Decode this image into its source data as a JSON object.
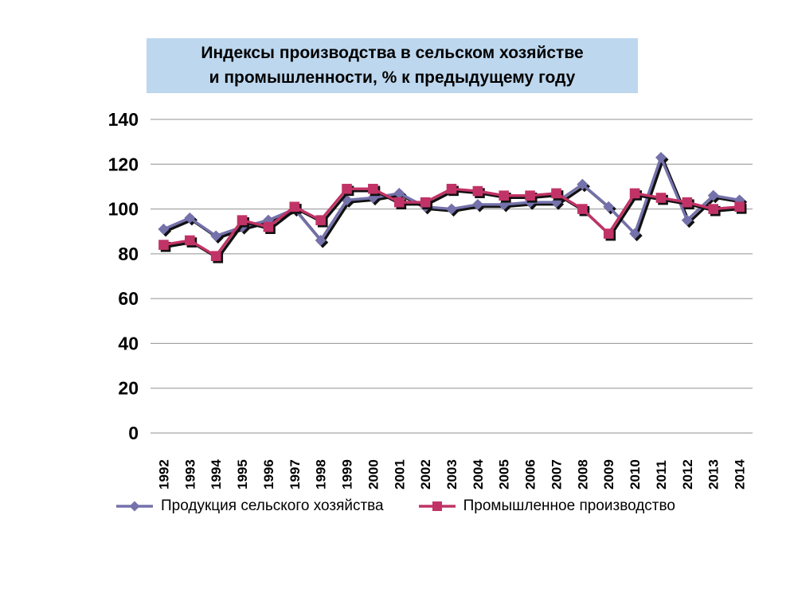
{
  "title": {
    "text": "Индексы производства в сельском хозяйстве\nи промышленности, % к предыдущему году",
    "bg_color": "#BDD7EE"
  },
  "colors": {
    "agriculture": "#7471AB",
    "industry": "#C13366",
    "shadow": "#111111",
    "gridline": "#909090",
    "title_bg": "#BDD7EE"
  },
  "chart_data": {
    "type": "line",
    "title": "Индексы производства в сельском хозяйстве и промышленности, % к предыдущему году",
    "xlabel": "",
    "ylabel": "",
    "ylim": [
      0,
      140
    ],
    "yticks": [
      0,
      20,
      40,
      60,
      80,
      100,
      120,
      140
    ],
    "grid": "horizontal",
    "legend_position": "bottom",
    "categories": [
      "1992",
      "1993",
      "1994",
      "1995",
      "1996",
      "1997",
      "1998",
      "1999",
      "2000",
      "2001",
      "2002",
      "2003",
      "2004",
      "2005",
      "2006",
      "2007",
      "2008",
      "2009",
      "2010",
      "2011",
      "2012",
      "2013",
      "2014"
    ],
    "series": [
      {
        "key": "agriculture",
        "name": "Продукция сельского хозяйства",
        "marker": "diamond",
        "color": "#7471AB",
        "values": [
          91,
          96,
          88,
          92,
          95,
          100,
          86,
          104,
          105,
          107,
          101,
          100,
          102,
          102,
          103,
          103,
          111,
          101,
          89,
          123,
          95,
          106,
          104
        ]
      },
      {
        "key": "industry",
        "name": "Промышленное производство",
        "marker": "square",
        "color": "#C13366",
        "values": [
          84,
          86,
          79,
          95,
          92,
          101,
          95,
          109,
          109,
          103,
          103,
          109,
          108,
          106,
          106,
          107,
          100,
          89,
          107,
          105,
          103,
          100,
          101
        ]
      }
    ]
  }
}
